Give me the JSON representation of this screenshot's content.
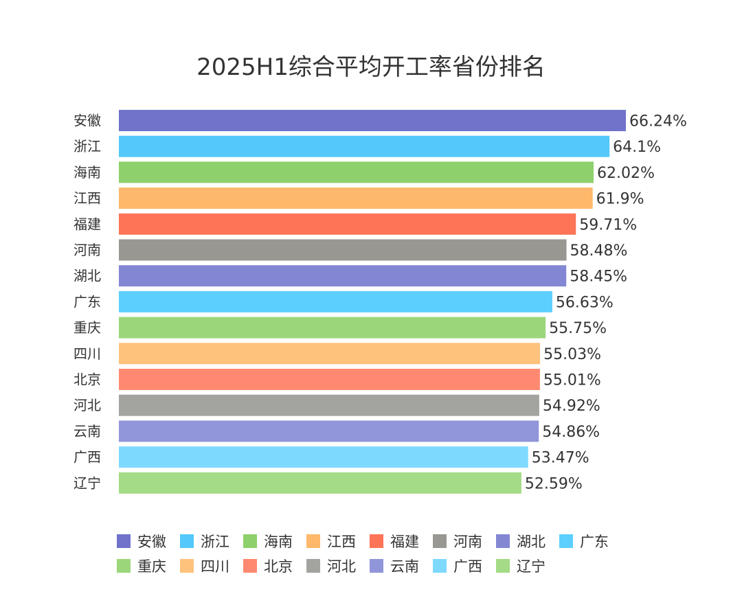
{
  "chart_data": {
    "type": "bar",
    "orientation": "horizontal",
    "title": "2025H1综合平均开工率省份排名",
    "categories": [
      "安徽",
      "浙江",
      "海南",
      "江西",
      "福建",
      "河南",
      "湖北",
      "广东",
      "重庆",
      "四川",
      "北京",
      "河北",
      "云南",
      "广西",
      "辽宁"
    ],
    "values": [
      66.24,
      64.1,
      62.02,
      61.9,
      59.71,
      58.48,
      58.45,
      56.63,
      55.75,
      55.03,
      55.01,
      54.92,
      54.86,
      53.47,
      52.59
    ],
    "labels": [
      "66.24%",
      "64.1%",
      "62.02%",
      "61.9%",
      "59.71%",
      "58.48%",
      "58.45%",
      "56.63%",
      "55.75%",
      "55.03%",
      "55.01%",
      "54.92%",
      "54.86%",
      "53.47%",
      "52.59%"
    ],
    "colors": [
      "#7073C9",
      "#54C8FA",
      "#8ED06B",
      "#FDB86B",
      "#FE7457",
      "#999792",
      "#8387D3",
      "#5CCFFE",
      "#9BD67B",
      "#FEC27D",
      "#FF8970",
      "#A3A3A0",
      "#9195D9",
      "#7ED9FF",
      "#A4DB86"
    ],
    "legend_position": "bottom",
    "grid": false,
    "xlabel": "",
    "ylabel": ""
  }
}
